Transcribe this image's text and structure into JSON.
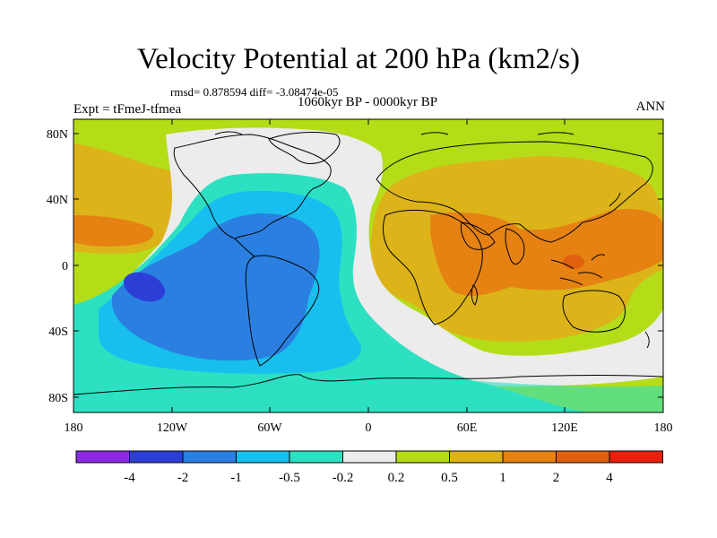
{
  "title": "Velocity Potential at 200 hPa (km2/s)",
  "rmsd_line": "rmsd= 0.878594 diff= -3.08474e-05",
  "subtitle": "1060kyr BP - 0000kyr BP",
  "experiment": "Expt = tFmeJ-tfmea",
  "season": "ANN",
  "lat_ticks": [
    "80N",
    "40N",
    "0",
    "40S",
    "80S"
  ],
  "lon_ticks": [
    "180",
    "120W",
    "60W",
    "0",
    "60E",
    "120E",
    "180"
  ],
  "colorbar": {
    "labels": [
      "-4",
      "-2",
      "-1",
      "-0.5",
      "-0.2",
      "0.2",
      "0.5",
      "1",
      "2",
      "4"
    ],
    "colors": [
      "#8a2be2",
      "#2b3fd6",
      "#2a7fe0",
      "#18bfee",
      "#2de0c2",
      "#ececec",
      "#b4dd18",
      "#ddb31a",
      "#e58212",
      "#e06010",
      "#e8200c"
    ]
  }
}
